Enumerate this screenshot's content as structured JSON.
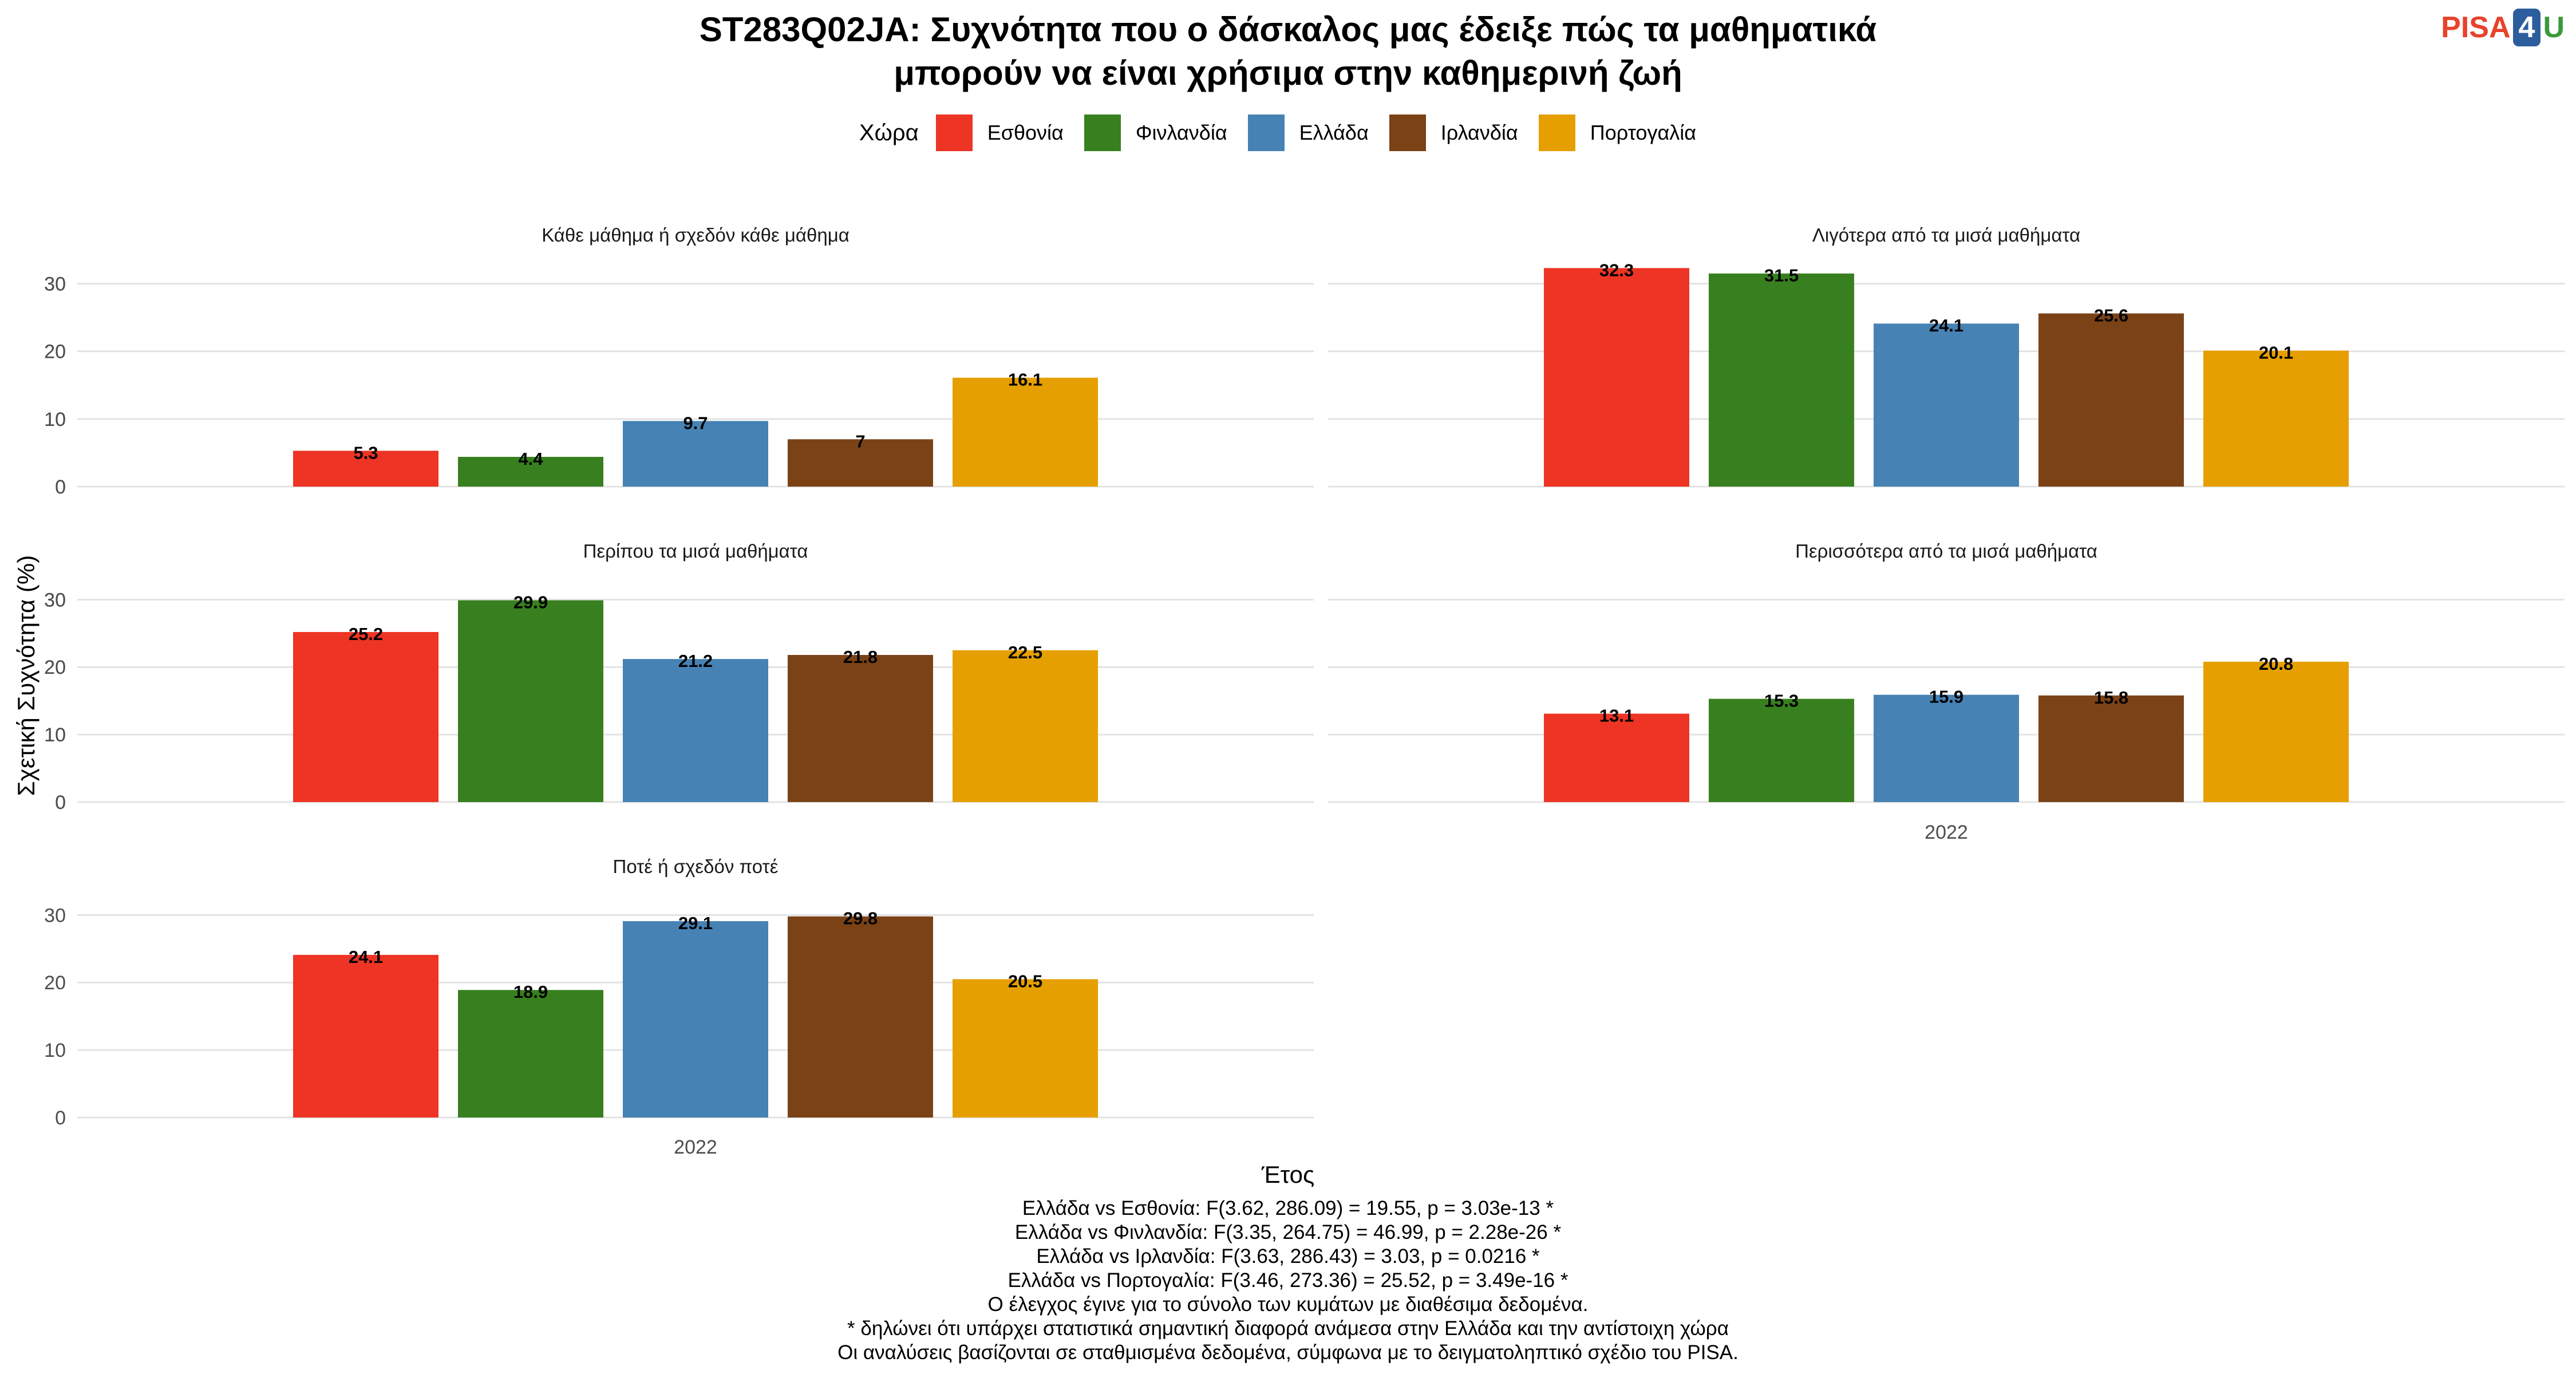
{
  "title_line1": "ST283Q02JA: Συχνότητα που ο δάσκαλος μας έδειξε πώς τα μαθηματικά",
  "title_line2": "μπορούν να είναι χρήσιμα στην καθημερινή ζωή",
  "logo": {
    "pisa": "PISA",
    "four": "4",
    "u": "U"
  },
  "legend_title": "Χώρα",
  "colors": {
    "Εσθονία": "#EE3424",
    "Φινλανδία": "#38801F",
    "Ελλάδα": "#4682B4",
    "Ιρλανδία": "#7B4216",
    "Πορτογαλία": "#E69F00"
  },
  "chart_data": {
    "type": "bar",
    "xlabel": "Έτος",
    "ylabel": "Σχετική Συχνότητα (%)",
    "x_category": "2022",
    "ylim": [
      0,
      33
    ],
    "yticks": [
      0,
      10,
      20,
      30
    ],
    "grid": true,
    "legend_position": "top",
    "series_names": [
      "Εσθονία",
      "Φινλανδία",
      "Ελλάδα",
      "Ιρλανδία",
      "Πορτογαλία"
    ],
    "panels": [
      {
        "title": "Κάθε μάθημα ή σχεδόν κάθε μάθημα",
        "values": [
          5.3,
          4.4,
          9.7,
          7,
          16.1
        ]
      },
      {
        "title": "Λιγότερα από τα μισά μαθήματα",
        "values": [
          32.3,
          31.5,
          24.1,
          25.6,
          20.1
        ]
      },
      {
        "title": "Περίπου τα μισά μαθήματα",
        "values": [
          25.2,
          29.9,
          21.2,
          21.8,
          22.5
        ]
      },
      {
        "title": "Περισσότερα από τα μισά μαθήματα",
        "values": [
          13.1,
          15.3,
          15.9,
          15.8,
          20.8
        ]
      },
      {
        "title": "Ποτέ ή σχεδόν ποτέ",
        "values": [
          24.1,
          18.9,
          29.1,
          29.8,
          20.5
        ]
      }
    ]
  },
  "notes": [
    "Ελλάδα vs Εσθονία: F(3.62, 286.09) = 19.55, p = 3.03e-13 *",
    "Ελλάδα vs Φινλανδία: F(3.35, 264.75) = 46.99, p = 2.28e-26 *",
    "Ελλάδα vs Ιρλανδία: F(3.63, 286.43) = 3.03, p = 0.0216 *",
    "Ελλάδα vs Πορτογαλία: F(3.46, 273.36) = 25.52, p = 3.49e-16 *",
    "Ο έλεγχος έγινε για το σύνολο των κυμάτων με διαθέσιμα δεδομένα.",
    "* δηλώνει ότι υπάρχει στατιστικά σημαντική διαφορά ανάμεσα στην Ελλάδα και την αντίστοιχη χώρα",
    "Οι αναλύσεις βασίζονται σε σταθμισμένα δεδομένα, σύμφωνα με το δειγματοληπτικό σχέδιο του PISA."
  ]
}
